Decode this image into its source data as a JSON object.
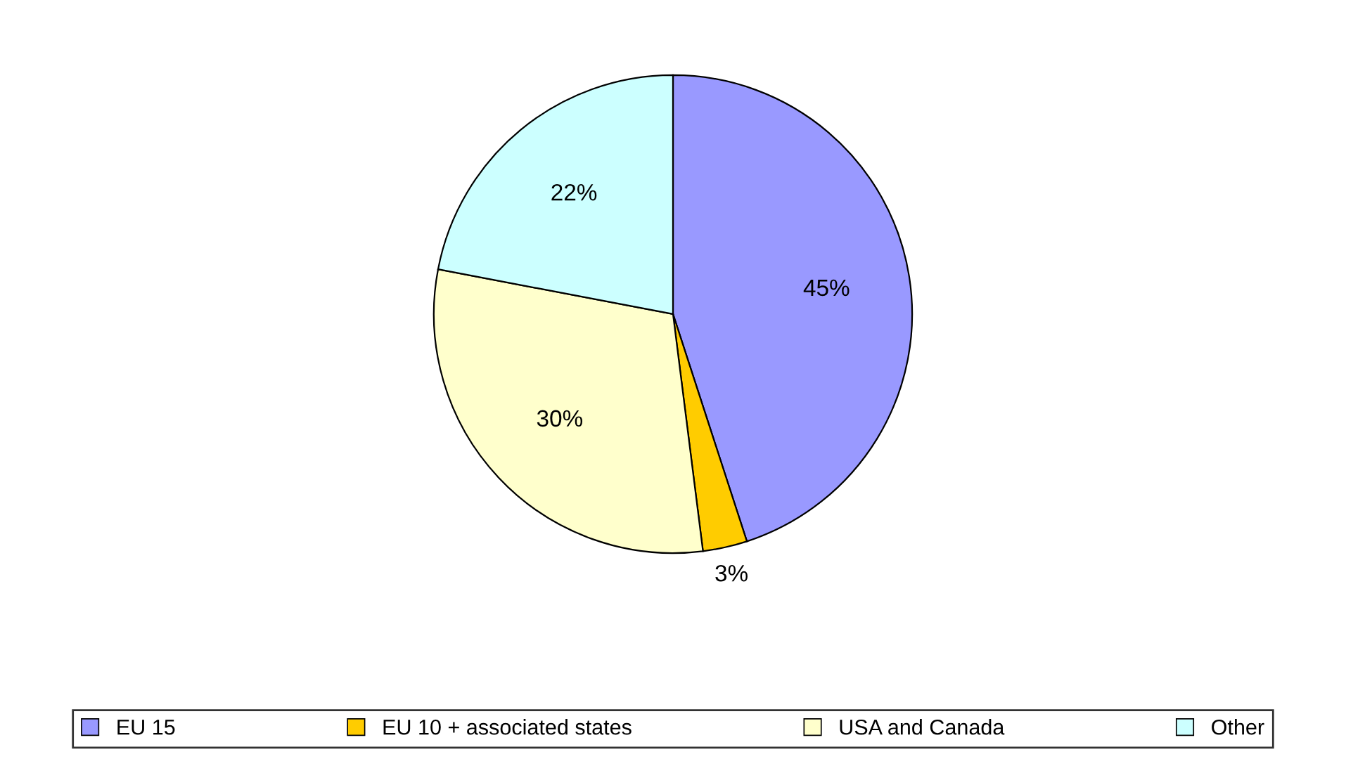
{
  "chart_data": {
    "type": "pie",
    "categories": [
      "EU 15",
      "EU 10 + associated states",
      "USA and Canada",
      "Other"
    ],
    "values": [
      45,
      3,
      30,
      22
    ],
    "colors": [
      "#9999ff",
      "#ffcc00",
      "#ffffcc",
      "#ccffff"
    ],
    "value_labels": [
      "45%",
      "3%",
      "30%",
      "22%"
    ],
    "legend": "bottom"
  }
}
